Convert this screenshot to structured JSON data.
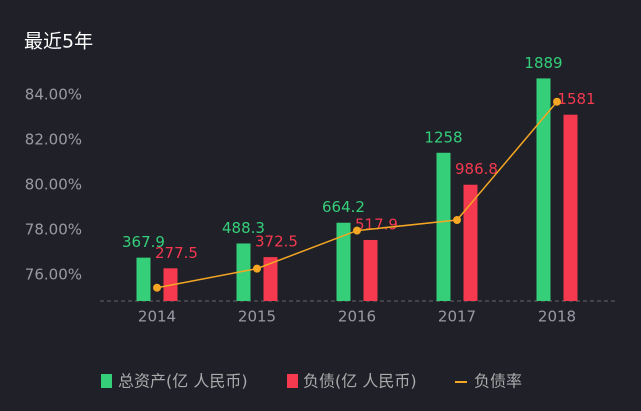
{
  "chart_data": {
    "type": "bar-line",
    "title": "最近5年",
    "categories": [
      "2014",
      "2015",
      "2016",
      "2017",
      "2018"
    ],
    "ylim": [
      74.84,
      86
    ],
    "yticks": [
      {
        "value": 76,
        "label": "76.00%"
      },
      {
        "value": 78,
        "label": "78.00%"
      },
      {
        "value": 80,
        "label": "80.00%"
      },
      {
        "value": 82,
        "label": "82.00%"
      },
      {
        "value": 84,
        "label": "84.00%"
      }
    ],
    "y2lim": [
      0,
      2130
    ],
    "series": [
      {
        "name": "总资产(亿 人民币)",
        "type": "bar",
        "axis": "y2",
        "color": "#35cf7a",
        "values": [
          367.9,
          488.3,
          664.2,
          1258,
          1889
        ]
      },
      {
        "name": "负债(亿 人民币)",
        "type": "bar",
        "axis": "y2",
        "color": "#f5394f",
        "values": [
          277.5,
          372.5,
          517.9,
          986.8,
          1581
        ]
      },
      {
        "name": "负债率",
        "type": "line",
        "axis": "y",
        "color": "#f5a623",
        "values": [
          75.43,
          76.28,
          77.97,
          78.44,
          83.7
        ]
      }
    ]
  }
}
